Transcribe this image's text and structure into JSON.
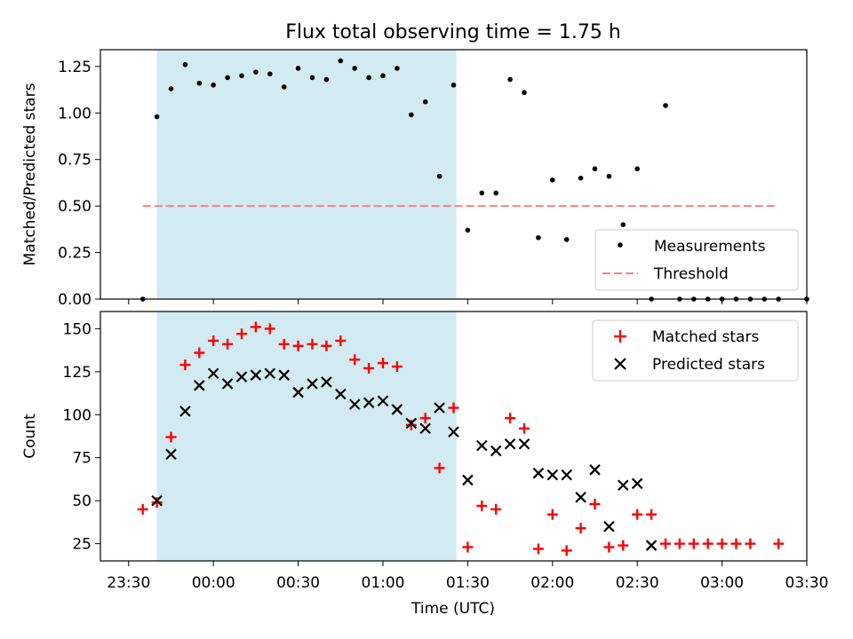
{
  "title": "Flux total observing time = 1.75 h",
  "colors": {
    "shade": "#add8e6",
    "threshold": "#ff7f7f",
    "matched": "#ff0000",
    "predicted": "#000000",
    "measure": "#000000"
  },
  "chart_data": [
    {
      "type": "scatter",
      "ylabel": "Matched/Predicted stars",
      "xlim": [
        -10,
        240
      ],
      "ylim": [
        0,
        1.34
      ],
      "yticks": [
        0.0,
        0.25,
        0.5,
        0.75,
        1.0,
        1.25
      ],
      "ytick_labels": [
        "0.00",
        "0.25",
        "0.50",
        "0.75",
        "1.00",
        "1.25"
      ],
      "shaded_span": [
        10,
        116
      ],
      "threshold": {
        "value": 0.5,
        "x": [
          5,
          240
        ],
        "label": "Threshold"
      },
      "legend": {
        "position": "lower-right",
        "entries": [
          "Measurements",
          "Threshold"
        ]
      },
      "series": [
        {
          "name": "Measurements",
          "marker": "dot",
          "x": [
            5,
            10,
            15,
            20,
            25,
            30,
            35,
            40,
            45,
            50,
            55,
            60,
            65,
            70,
            75,
            80,
            85,
            90,
            95,
            100,
            105,
            110,
            115,
            120,
            125,
            130,
            135,
            140,
            145,
            150,
            155,
            160,
            165,
            170,
            175,
            180,
            185,
            190,
            195,
            200,
            205,
            210,
            215,
            220,
            225,
            230,
            240
          ],
          "y": [
            0.0,
            0.98,
            1.13,
            1.26,
            1.16,
            1.15,
            1.19,
            1.2,
            1.22,
            1.21,
            1.14,
            1.24,
            1.19,
            1.18,
            1.28,
            1.24,
            1.19,
            1.2,
            1.24,
            0.99,
            1.06,
            0.66,
            1.15,
            0.37,
            0.57,
            0.57,
            1.18,
            1.11,
            0.33,
            0.64,
            0.32,
            0.65,
            0.7,
            0.66,
            0.4,
            0.7,
            0.0,
            1.04,
            0.0,
            0.0,
            0.0,
            0.0,
            0.0,
            0.0,
            0.0,
            0.0,
            0.0
          ]
        }
      ]
    },
    {
      "type": "scatter",
      "ylabel": "Count",
      "xlabel": "Time (UTC)",
      "xlim": [
        -10,
        240
      ],
      "ylim": [
        15,
        160
      ],
      "yticks": [
        25,
        50,
        75,
        100,
        125,
        150
      ],
      "ytick_labels": [
        "25",
        "50",
        "75",
        "100",
        "125",
        "150"
      ],
      "xticks": [
        0,
        30,
        60,
        90,
        120,
        150,
        180,
        210,
        240
      ],
      "xtick_labels": [
        "23:30",
        "00:00",
        "00:30",
        "01:00",
        "01:30",
        "02:00",
        "02:30",
        "03:00",
        "03:30"
      ],
      "shaded_span": [
        10,
        116
      ],
      "legend": {
        "position": "upper-right",
        "entries": [
          "Matched stars",
          "Predicted stars"
        ]
      },
      "series": [
        {
          "name": "Matched stars",
          "marker": "plus",
          "x": [
            5,
            10,
            15,
            20,
            25,
            30,
            35,
            40,
            45,
            50,
            55,
            60,
            65,
            70,
            75,
            80,
            85,
            90,
            95,
            100,
            105,
            110,
            115,
            120,
            125,
            130,
            135,
            140,
            145,
            150,
            155,
            160,
            165,
            170,
            175,
            180,
            185,
            190,
            195,
            200,
            205,
            210,
            215,
            220,
            230
          ],
          "y": [
            45,
            49,
            87,
            129,
            136,
            143,
            141,
            147,
            151,
            150,
            141,
            140,
            141,
            140,
            143,
            132,
            127,
            130,
            128,
            94,
            98,
            69,
            104,
            23,
            47,
            45,
            98,
            92,
            22,
            42,
            21,
            34,
            48,
            23,
            24,
            42,
            42,
            25,
            25,
            25,
            25,
            25,
            25,
            25,
            25
          ]
        },
        {
          "name": "Predicted stars",
          "marker": "x",
          "x": [
            10,
            15,
            20,
            25,
            30,
            35,
            40,
            45,
            50,
            55,
            60,
            65,
            70,
            75,
            80,
            85,
            90,
            95,
            100,
            105,
            110,
            115,
            120,
            125,
            130,
            135,
            140,
            145,
            150,
            155,
            160,
            165,
            170,
            175,
            180,
            185
          ],
          "y": [
            50,
            77,
            102,
            117,
            124,
            118,
            122,
            123,
            124,
            123,
            113,
            118,
            119,
            112,
            106,
            107,
            108,
            103,
            95,
            92,
            104,
            90,
            62,
            82,
            79,
            83,
            83,
            66,
            65,
            65,
            52,
            68,
            35,
            59,
            60,
            24
          ]
        }
      ]
    }
  ]
}
